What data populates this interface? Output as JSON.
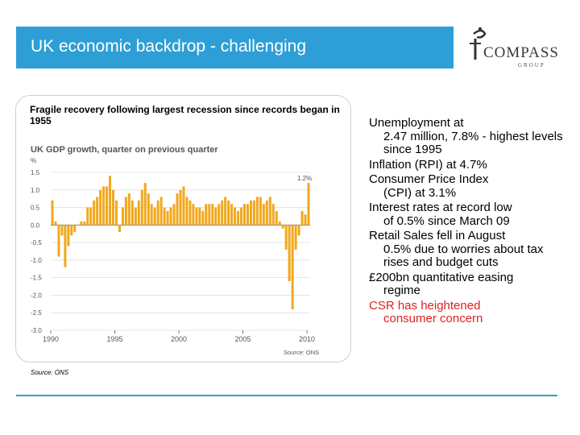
{
  "header": {
    "title": "UK economic backdrop - challenging"
  },
  "logo": {
    "name": "COMPASS",
    "sub": "GROUP"
  },
  "chart_panel": {
    "caption": "Fragile recovery following largest recession since records began in 1955",
    "source_note": "Source: ONS"
  },
  "bullets": [
    {
      "first": "Unemployment at",
      "rest": "2.47 million, 7.8% - highest levels since 1995",
      "highlight": false
    },
    {
      "first": "Inflation (RPI) at 4.7%",
      "rest": "",
      "highlight": false
    },
    {
      "first": "Consumer Price Index",
      "rest": "(CPI) at 3.1%",
      "highlight": false
    },
    {
      "first": "Interest rates at record low",
      "rest": "of 0.5% since March 09",
      "highlight": false
    },
    {
      "first": "Retail Sales fell in August",
      "rest": "0.5% due to worries about tax rises and budget cuts",
      "highlight": false
    },
    {
      "first": "£200bn quantitative easing",
      "rest": "regime",
      "highlight": false
    },
    {
      "first": "CSR has heightened",
      "rest": "consumer concern",
      "highlight": true
    }
  ],
  "colors": {
    "header": "#2e9fd6",
    "bar": "#f2a81d",
    "highlight": "#e02020"
  },
  "chart_data": {
    "type": "bar",
    "title": "UK GDP growth, quarter on previous quarter",
    "ylabel": "%",
    "xlabel": "",
    "ylim": [
      -3.0,
      1.5
    ],
    "yticks": [
      "1.5",
      "1.0",
      "0.5",
      "0.0",
      "-0.5",
      "-1.0",
      "-1.5",
      "-2.0",
      "-2.5",
      "-3.0"
    ],
    "xticks": [
      "1990",
      "1995",
      "2000",
      "2005",
      "2010"
    ],
    "x_start": 1990,
    "quarters_per_year": 4,
    "annotation": "1.2%",
    "source": "Source: ONS",
    "values": [
      0.7,
      0.1,
      -0.9,
      -0.3,
      -1.2,
      -0.6,
      -0.3,
      -0.2,
      0.0,
      0.1,
      0.1,
      0.5,
      0.5,
      0.7,
      0.8,
      1.0,
      1.1,
      1.1,
      1.4,
      1.0,
      0.7,
      -0.2,
      0.5,
      0.8,
      0.9,
      0.7,
      0.5,
      0.7,
      1.0,
      1.2,
      0.9,
      0.6,
      0.5,
      0.7,
      0.8,
      0.5,
      0.4,
      0.5,
      0.6,
      0.9,
      1.0,
      1.1,
      0.8,
      0.7,
      0.6,
      0.5,
      0.5,
      0.4,
      0.6,
      0.6,
      0.6,
      0.5,
      0.6,
      0.7,
      0.8,
      0.7,
      0.6,
      0.5,
      0.4,
      0.5,
      0.6,
      0.6,
      0.7,
      0.7,
      0.8,
      0.8,
      0.6,
      0.7,
      0.8,
      0.6,
      0.4,
      0.1,
      -0.1,
      -0.7,
      -1.6,
      -2.4,
      -0.7,
      -0.3,
      0.4,
      0.3,
      1.2
    ]
  }
}
